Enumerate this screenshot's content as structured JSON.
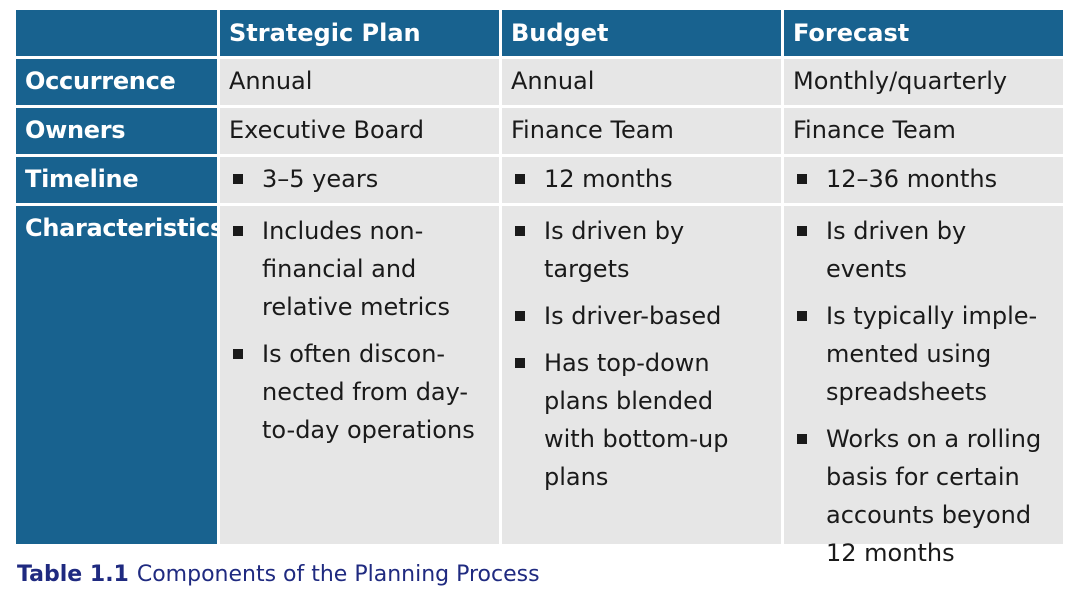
{
  "table": {
    "headers": [
      "",
      "Strategic Plan",
      "Budget",
      "Forecast"
    ],
    "rows": {
      "occurrence": {
        "label": "Occurrence",
        "values": [
          "Annual",
          "Annual",
          "Monthly/quarterly"
        ]
      },
      "owners": {
        "label": "Owners",
        "values": [
          "Executive Board",
          "Finance Team",
          "Finance Team"
        ]
      },
      "timeline": {
        "label": "Timeline",
        "values": [
          "3–5 years",
          "12 months",
          "12–36 months"
        ]
      },
      "characteristics": {
        "label": "Characteristics",
        "strategic": [
          "Includes non-\nfinancial and\nrelative metrics",
          "Is often discon-\nnected from day-\nto-day operations"
        ],
        "budget": [
          "Is driven by\ntargets",
          "Is driver-based",
          "Has top-down\nplans blended\nwith bottom-up\nplans"
        ],
        "forecast": [
          "Is driven by events",
          "Is typically imple-\nmented using\nspreadsheets",
          "Works on a rolling\nbasis for certain\naccounts beyond\n12 months"
        ]
      }
    }
  },
  "caption": {
    "number": "Table 1.1",
    "text": "Components of the Planning Process"
  },
  "colors": {
    "header_bg": "#18628f",
    "cell_bg": "#e6e6e6",
    "caption": "#1f2a80"
  }
}
